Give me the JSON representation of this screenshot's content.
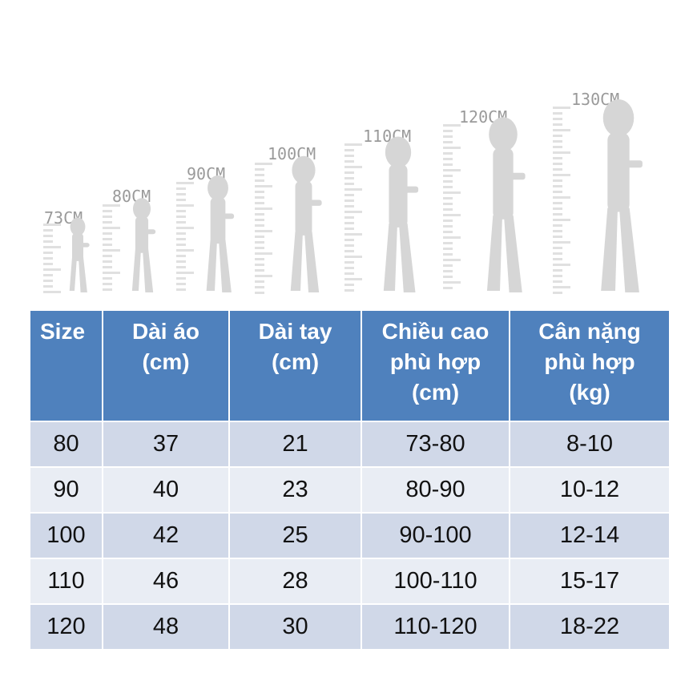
{
  "figures": [
    {
      "label": "73CM"
    },
    {
      "label": "80CM"
    },
    {
      "label": "90CM"
    },
    {
      "label": "100CM"
    },
    {
      "label": "110CM"
    },
    {
      "label": "120CM"
    },
    {
      "label": "130CM"
    }
  ],
  "table": {
    "headers": [
      [
        "Size"
      ],
      [
        "Dài áo",
        "(cm)"
      ],
      [
        "Dài tay",
        "(cm)"
      ],
      [
        "Chiều cao",
        "phù hợp",
        "(cm)"
      ],
      [
        "Cân nặng",
        "phù hợp",
        "(kg)"
      ]
    ],
    "rows": [
      [
        "80",
        "37",
        "21",
        "73-80",
        "8-10"
      ],
      [
        "90",
        "40",
        "23",
        "80-90",
        "10-12"
      ],
      [
        "100",
        "42",
        "25",
        "90-100",
        "12-14"
      ],
      [
        "110",
        "46",
        "28",
        "100-110",
        "15-17"
      ],
      [
        "120",
        "48",
        "30",
        "110-120",
        "18-22"
      ]
    ]
  },
  "colors": {
    "header_bg": "#4f81bd",
    "row_dark": "#d0d8e8",
    "row_light": "#e9edf4",
    "silhouette": "#d6d6d6"
  }
}
